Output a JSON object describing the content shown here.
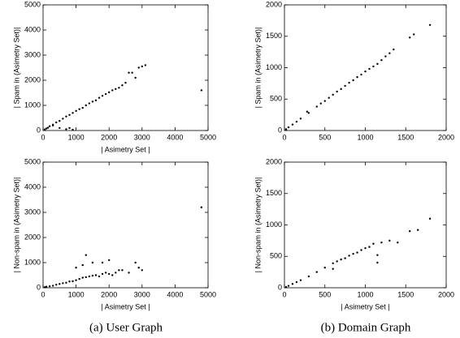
{
  "chart_data": [
    {
      "type": "scatter",
      "xlabel": "| Asimetry Set |",
      "ylabel": "| Spam in (Asimetry Set)|",
      "color": "#000000",
      "xlim": [
        0,
        5000
      ],
      "ylim": [
        0,
        5000
      ],
      "xticks": [
        0,
        1000,
        2000,
        3000,
        4000,
        5000
      ],
      "yticks": [
        0,
        1000,
        2000,
        3000,
        4000,
        5000
      ],
      "x": [
        50,
        100,
        150,
        200,
        300,
        400,
        500,
        600,
        700,
        800,
        900,
        1000,
        1100,
        1200,
        1300,
        1400,
        1500,
        1600,
        1700,
        1800,
        1900,
        2000,
        2100,
        2200,
        2300,
        2400,
        2500,
        2600,
        2700,
        2800,
        2900,
        3000,
        3100,
        4800,
        700,
        800,
        900,
        300,
        500
      ],
      "values": [
        40,
        80,
        110,
        170,
        230,
        320,
        380,
        470,
        560,
        620,
        700,
        780,
        850,
        900,
        1000,
        1080,
        1150,
        1200,
        1300,
        1380,
        1450,
        1520,
        1600,
        1650,
        1700,
        1800,
        1900,
        2300,
        2300,
        2100,
        2500,
        2550,
        2600,
        1600,
        50,
        100,
        30,
        200,
        100
      ]
    },
    {
      "type": "scatter",
      "ylabel": "| Spam in (Asimetry Set)|",
      "color": "#000000",
      "xlim": [
        0,
        2000
      ],
      "ylim": [
        0,
        2000
      ],
      "xticks": [
        0,
        500,
        1000,
        1500,
        2000
      ],
      "yticks": [
        0,
        500,
        1000,
        1500,
        2000
      ],
      "x": [
        20,
        50,
        100,
        150,
        200,
        300,
        400,
        500,
        550,
        600,
        650,
        700,
        750,
        800,
        850,
        900,
        950,
        1000,
        1050,
        1100,
        1150,
        1200,
        1250,
        1300,
        1350,
        1550,
        1600,
        1800,
        280,
        450
      ],
      "values": [
        20,
        50,
        95,
        140,
        190,
        280,
        380,
        470,
        520,
        570,
        620,
        660,
        710,
        760,
        800,
        850,
        890,
        940,
        980,
        1020,
        1060,
        1120,
        1180,
        1230,
        1290,
        1480,
        1530,
        1680,
        300,
        430
      ]
    },
    {
      "type": "scatter",
      "xlabel": "| Asimetry Set |",
      "ylabel": "| Non-spam in (Asimetry Set)|",
      "color": "#000000",
      "xlim": [
        0,
        5000
      ],
      "ylim": [
        0,
        5000
      ],
      "xticks": [
        0,
        1000,
        2000,
        3000,
        4000,
        5000
      ],
      "yticks": [
        0,
        1000,
        2000,
        3000,
        4000,
        5000
      ],
      "x": [
        50,
        100,
        200,
        300,
        400,
        500,
        600,
        700,
        800,
        900,
        1000,
        1100,
        1200,
        1300,
        1400,
        1500,
        1600,
        1700,
        1800,
        1900,
        2000,
        2100,
        2200,
        2400,
        2600,
        2800,
        2900,
        3000,
        4800,
        1300,
        1500,
        1200,
        1800,
        2000,
        1000,
        2300
      ],
      "values": [
        20,
        40,
        60,
        80,
        120,
        150,
        180,
        200,
        250,
        260,
        300,
        350,
        400,
        420,
        450,
        480,
        500,
        450,
        550,
        600,
        550,
        500,
        600,
        700,
        600,
        1000,
        800,
        700,
        3200,
        1300,
        1000,
        900,
        1000,
        1100,
        800,
        700
      ]
    },
    {
      "type": "scatter",
      "xlabel": "| Asimetry Set |",
      "ylabel": "| Non-spam in (Asimetry Set)|",
      "color": "#000000",
      "xlim": [
        0,
        2000
      ],
      "ylim": [
        0,
        2000
      ],
      "xticks": [
        0,
        500,
        1000,
        1500,
        2000
      ],
      "yticks": [
        0,
        500,
        1000,
        1500,
        2000
      ],
      "x": [
        20,
        50,
        100,
        150,
        200,
        300,
        400,
        500,
        600,
        650,
        700,
        750,
        800,
        850,
        900,
        950,
        1000,
        1050,
        1100,
        1150,
        1200,
        1300,
        1400,
        1550,
        1650,
        1800,
        1150,
        600
      ],
      "values": [
        10,
        30,
        60,
        90,
        120,
        180,
        250,
        320,
        390,
        420,
        450,
        470,
        510,
        540,
        560,
        600,
        630,
        650,
        700,
        520,
        720,
        750,
        720,
        900,
        920,
        1100,
        400,
        300
      ]
    }
  ],
  "captions": [
    "(a) User Graph",
    "(b) Domain Graph"
  ]
}
